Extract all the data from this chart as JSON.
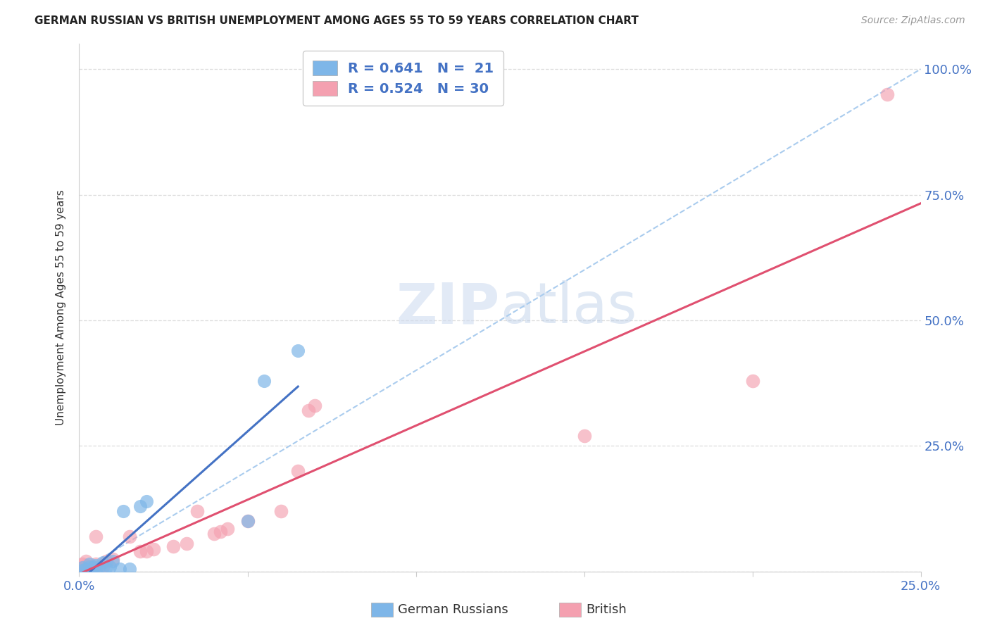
{
  "title": "GERMAN RUSSIAN VS BRITISH UNEMPLOYMENT AMONG AGES 55 TO 59 YEARS CORRELATION CHART",
  "source": "Source: ZipAtlas.com",
  "ylabel": "Unemployment Among Ages 55 to 59 years",
  "xlabel_german": "German Russians",
  "xlabel_british": "British",
  "xlim": [
    0.0,
    0.25
  ],
  "ylim": [
    0.0,
    1.05
  ],
  "xticks": [
    0.0,
    0.05,
    0.1,
    0.15,
    0.2,
    0.25
  ],
  "xtick_labels": [
    "0.0%",
    "",
    "",
    "",
    "",
    "25.0%"
  ],
  "yticks": [
    0.0,
    0.25,
    0.5,
    0.75,
    1.0
  ],
  "ytick_labels": [
    "",
    "25.0%",
    "50.0%",
    "75.0%",
    "100.0%"
  ],
  "legend_r_german": "R = 0.641   N =  21",
  "legend_r_british": "R = 0.524   N = 30",
  "german_color": "#7EB6E8",
  "british_color": "#F4A0B0",
  "trend_german_color": "#4472C4",
  "trend_british_color": "#E05070",
  "diagonal_color": "#AACCEE",
  "label_color": "#4472C4",
  "background_color": "#FFFFFF",
  "grid_color": "#DDDDDD",
  "german_x": [
    0.001,
    0.001,
    0.002,
    0.003,
    0.003,
    0.004,
    0.005,
    0.005,
    0.006,
    0.007,
    0.008,
    0.009,
    0.01,
    0.012,
    0.013,
    0.015,
    0.018,
    0.02,
    0.05,
    0.055,
    0.065
  ],
  "german_y": [
    0.002,
    0.008,
    0.005,
    0.01,
    0.015,
    0.008,
    0.005,
    0.012,
    0.01,
    0.018,
    0.008,
    0.01,
    0.02,
    0.005,
    0.12,
    0.005,
    0.13,
    0.14,
    0.1,
    0.38,
    0.44
  ],
  "british_x": [
    0.001,
    0.001,
    0.001,
    0.002,
    0.002,
    0.004,
    0.004,
    0.005,
    0.005,
    0.007,
    0.008,
    0.01,
    0.015,
    0.018,
    0.02,
    0.022,
    0.028,
    0.032,
    0.035,
    0.04,
    0.042,
    0.044,
    0.05,
    0.06,
    0.065,
    0.068,
    0.07,
    0.15,
    0.2,
    0.24
  ],
  "british_y": [
    0.002,
    0.008,
    0.015,
    0.012,
    0.02,
    0.005,
    0.01,
    0.015,
    0.07,
    0.01,
    0.02,
    0.025,
    0.07,
    0.04,
    0.04,
    0.045,
    0.05,
    0.055,
    0.12,
    0.075,
    0.08,
    0.085,
    0.1,
    0.12,
    0.2,
    0.32,
    0.33,
    0.27,
    0.38,
    0.95
  ]
}
